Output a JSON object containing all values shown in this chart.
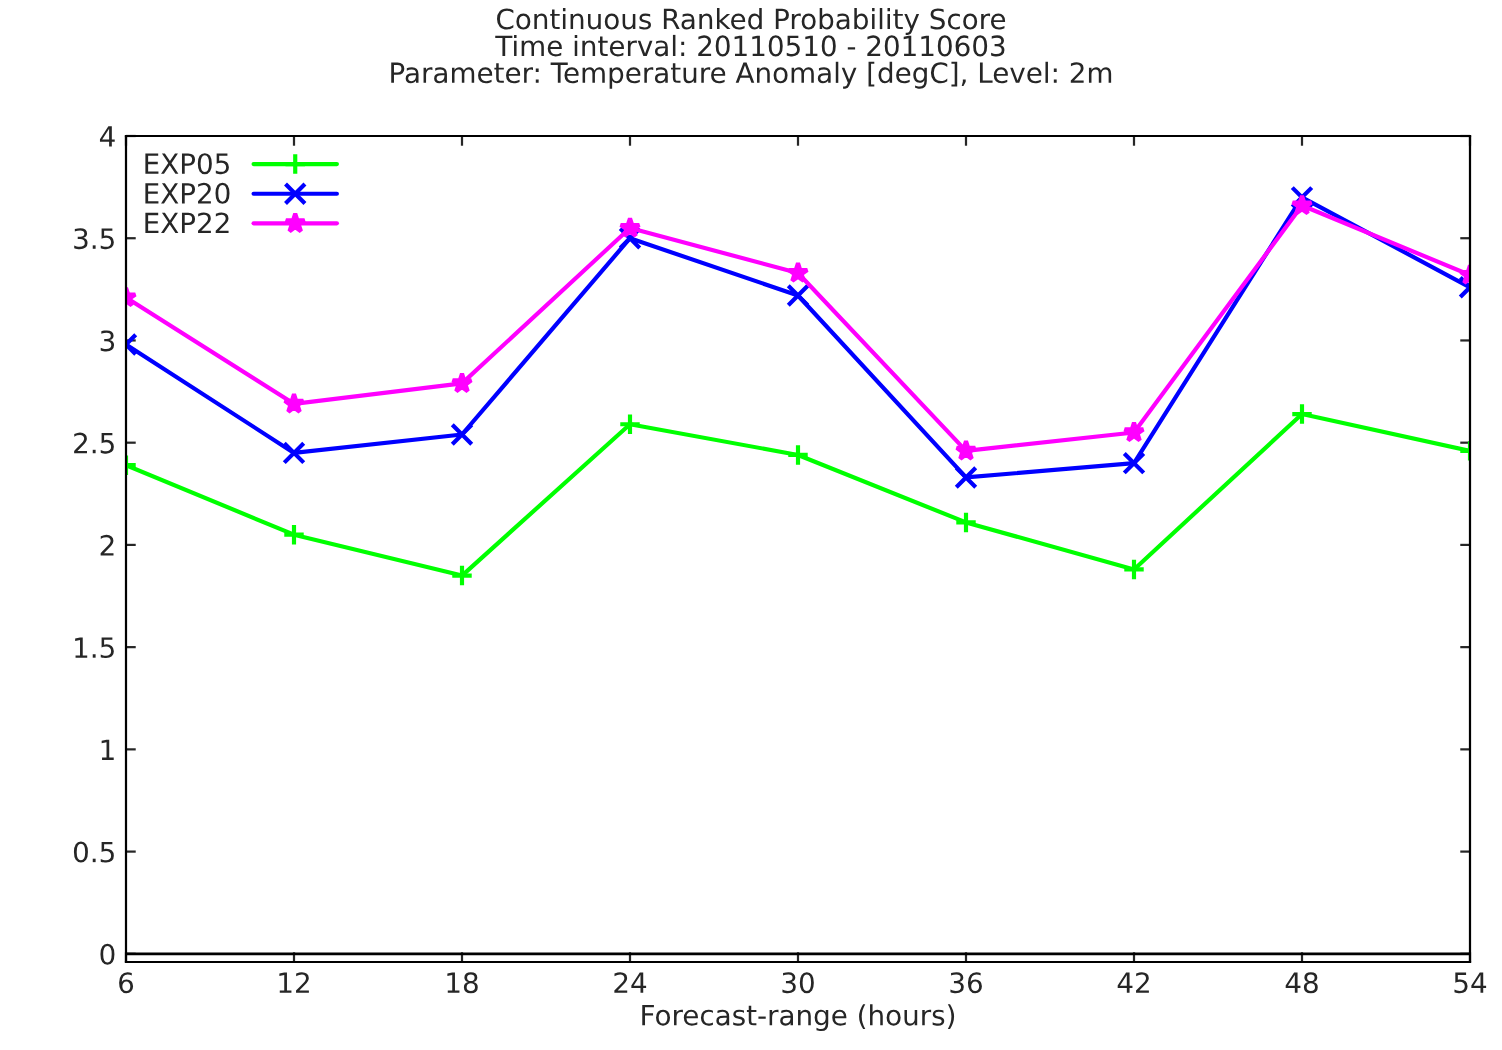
{
  "chart_data": {
    "type": "line",
    "title": "Continuous Ranked Probability Score\nTime interval: 20110510 - 20110603\nParameter: Temperature Anomaly [degC], Level: 2m",
    "xlabel": "Forecast-range (hours)",
    "x": [
      6,
      12,
      18,
      24,
      30,
      36,
      42,
      48,
      54
    ],
    "series": [
      {
        "name": "EXP05",
        "color": "#00ff00",
        "marker": "cross",
        "values": [
          2.39,
          2.05,
          1.85,
          2.59,
          2.44,
          2.11,
          1.88,
          2.64,
          2.46
        ]
      },
      {
        "name": "EXP20",
        "color": "#0000ff",
        "marker": "cross",
        "values": [
          2.98,
          2.45,
          2.54,
          3.5,
          3.22,
          2.33,
          2.4,
          3.7,
          3.26
        ]
      },
      {
        "name": "EXP22",
        "color": "#ff00ff",
        "marker": "star",
        "values": [
          3.21,
          2.69,
          2.79,
          3.55,
          3.33,
          2.46,
          2.55,
          3.66,
          3.32
        ]
      }
    ],
    "xlim": [
      6,
      54
    ],
    "xticks": [
      6,
      12,
      18,
      24,
      30,
      36,
      42,
      48,
      54
    ],
    "ylim": [
      -0.04,
      4
    ],
    "yticks": [
      0,
      0.5,
      1,
      1.5,
      2,
      2.5,
      3,
      3.5,
      4
    ],
    "ref_lines": [
      {
        "axis": "y",
        "value": 0,
        "color": "#000000"
      }
    ],
    "grid": false,
    "legend": "top left",
    "line_style": "solid"
  }
}
